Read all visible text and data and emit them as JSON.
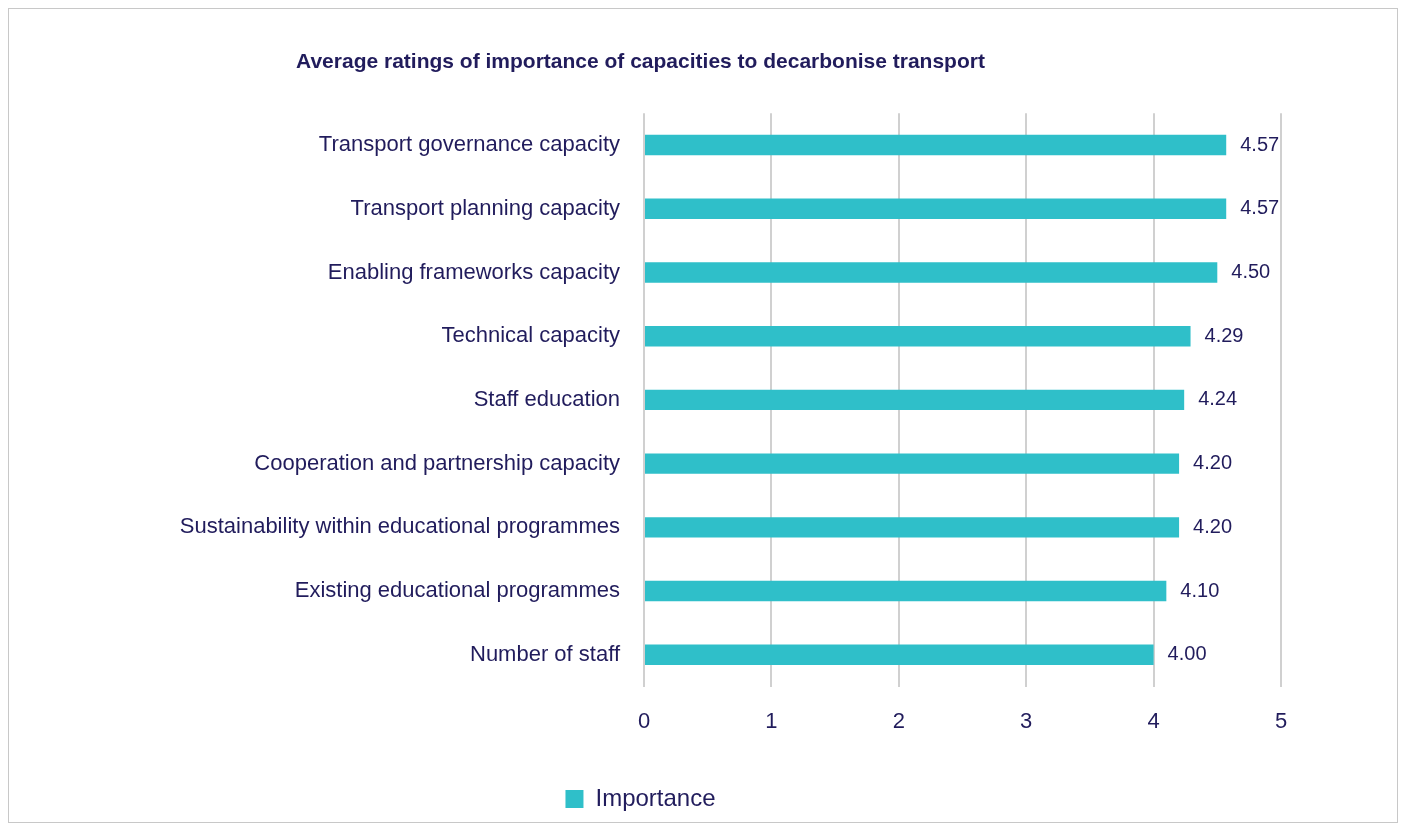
{
  "chart_data": {
    "type": "bar",
    "orientation": "horizontal",
    "title": "Average ratings of importance of capacities to decarbonise transport",
    "categories": [
      "Transport governance capacity",
      "Transport planning capacity",
      "Enabling frameworks capacity",
      "Technical capacity",
      "Staff education",
      "Cooperation and partnership capacity",
      "Sustainability within educational programmes",
      "Existing educational programmes",
      "Number of staff"
    ],
    "series": [
      {
        "name": "Importance",
        "color": "#2fbfc9",
        "values": [
          4.57,
          4.57,
          4.5,
          4.29,
          4.24,
          4.2,
          4.2,
          4.1,
          4.0
        ],
        "value_labels": [
          "4.57",
          "4.57",
          "4.50",
          "4.29",
          "4.24",
          "4.20",
          "4.20",
          "4.10",
          "4.00"
        ]
      }
    ],
    "xlim": [
      0,
      5
    ],
    "xticks": [
      0,
      1,
      2,
      3,
      4,
      5
    ],
    "grid": "x",
    "legend": "bottom"
  }
}
